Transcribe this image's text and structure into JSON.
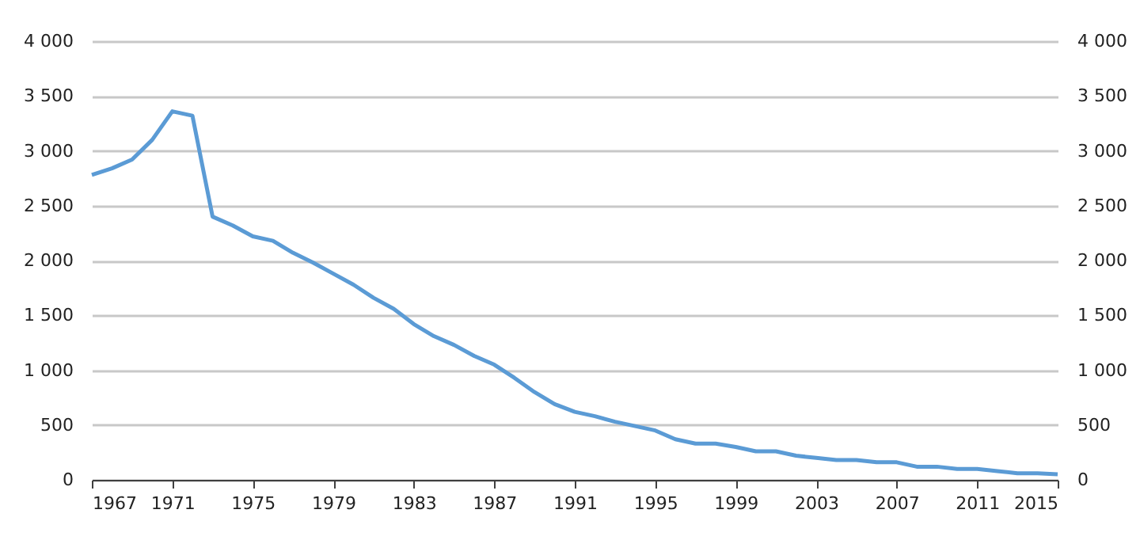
{
  "chart_data": {
    "type": "line",
    "x": [
      1967,
      1968,
      1969,
      1970,
      1971,
      1972,
      1973,
      1974,
      1975,
      1976,
      1977,
      1978,
      1979,
      1980,
      1981,
      1982,
      1983,
      1984,
      1985,
      1986,
      1987,
      1988,
      1989,
      1990,
      1991,
      1992,
      1993,
      1994,
      1995,
      1996,
      1997,
      1998,
      1999,
      2000,
      2001,
      2002,
      2003,
      2004,
      2005,
      2006,
      2007,
      2008,
      2009,
      2010,
      2011,
      2012,
      2013,
      2014,
      2015
    ],
    "series": [
      {
        "color": "#5b9bd5",
        "values": [
          2780,
          2840,
          2920,
          3100,
          3360,
          3320,
          2400,
          2320,
          2220,
          2180,
          2070,
          1980,
          1880,
          1780,
          1660,
          1560,
          1420,
          1310,
          1230,
          1130,
          1050,
          930,
          800,
          690,
          620,
          580,
          530,
          490,
          450,
          370,
          330,
          330,
          300,
          260,
          260,
          220,
          200,
          180,
          180,
          160,
          160,
          120,
          120,
          100,
          100,
          80,
          60,
          60,
          50
        ]
      }
    ],
    "xlim": [
      1967,
      2015
    ],
    "xticks": [
      1967,
      1971,
      1975,
      1979,
      1983,
      1987,
      1991,
      1995,
      1999,
      2003,
      2007,
      2011,
      2015
    ],
    "ylim": [
      0,
      4000
    ],
    "yticks": [
      0,
      500,
      {
        "value": 1000,
        "label": "1 000"
      },
      {
        "value": 1500,
        "label": "1 500"
      },
      {
        "value": 2000,
        "label": "2 000"
      },
      {
        "value": 2500,
        "label": "2 500"
      },
      {
        "value": 3000,
        "label": "3 000"
      },
      {
        "value": 3500,
        "label": "3 500"
      },
      {
        "value": 4000,
        "label": "4 000"
      }
    ],
    "y2lim": [
      0,
      4000
    ],
    "y2ticks": [
      0,
      500,
      {
        "value": 1000,
        "label": "1 000"
      },
      {
        "value": 1500,
        "label": "1 500"
      },
      {
        "value": 2000,
        "label": "2 000"
      },
      {
        "value": 2500,
        "label": "2 500"
      },
      {
        "value": 3000,
        "label": "3 000"
      },
      {
        "value": 3500,
        "label": "3 500"
      },
      {
        "value": 4000,
        "label": "4 000"
      }
    ],
    "grid": "y",
    "legend": false,
    "marker": "none",
    "line_style": "solid"
  }
}
